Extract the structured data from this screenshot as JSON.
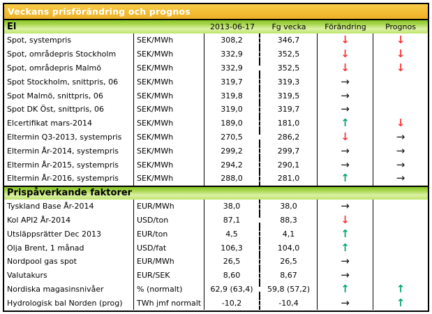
{
  "title": "Veckans prisförändring och prognos",
  "columns": {
    "date": "2013-06-17",
    "prev": "Fg vecka",
    "change": "Förändring",
    "forecast": "Prognos"
  },
  "colors": {
    "title_bar_bg": "#f2bd33",
    "section_bar_green": "#a9d84f",
    "up": "#00a76d",
    "down": "#ff3333",
    "right": "#111111"
  },
  "arrow_glyphs": {
    "up": "↑",
    "down": "↓",
    "right": "→",
    "none": ""
  },
  "sections": [
    {
      "title": "El",
      "rows": [
        {
          "label": "Spot, systempris",
          "unit": "SEK/MWh",
          "current": "308,2",
          "previous": "346,7",
          "change": "down",
          "forecast": "down"
        },
        {
          "label": "Spot, områdepris Stockholm",
          "unit": "SEK/MWh",
          "current": "332,9",
          "previous": "352,5",
          "change": "down",
          "forecast": "down"
        },
        {
          "label": "Spot, områdepris Malmö",
          "unit": "SEK/MWh",
          "current": "332,9",
          "previous": "352,5",
          "change": "down",
          "forecast": "down"
        },
        {
          "label": "Spot Stockholm, snittpris,  06",
          "unit": "SEK/MWh",
          "current": "319,7",
          "previous": "319,3",
          "change": "right",
          "forecast": "none"
        },
        {
          "label": "Spot Malmö, snittpris,  06",
          "unit": "SEK/MWh",
          "current": "319,8",
          "previous": "319,5",
          "change": "right",
          "forecast": "none"
        },
        {
          "label": "Spot DK Öst, snittpris,  06",
          "unit": "SEK/MWh",
          "current": "319,0",
          "previous": "319,7",
          "change": "right",
          "forecast": "none"
        },
        {
          "label": "Elcertifikat mars-2014",
          "unit": "SEK/MWh",
          "current": "189,0",
          "previous": "181,0",
          "change": "up",
          "forecast": "down"
        },
        {
          "label": "Eltermin Q3-2013, systempris",
          "unit": "SEK/MWh",
          "current": "270,5",
          "previous": "286,2",
          "change": "down",
          "forecast": "right"
        },
        {
          "label": "Eltermin År-2014, systempris",
          "unit": "SEK/MWh",
          "current": "299,2",
          "previous": "299,7",
          "change": "right",
          "forecast": "right"
        },
        {
          "label": "Eltermin År-2015, systempris",
          "unit": "SEK/MWh",
          "current": "294,2",
          "previous": "290,1",
          "change": "right",
          "forecast": "right"
        },
        {
          "label": "Eltermin År-2016, systempris",
          "unit": "SEK/MWh",
          "current": "288,0",
          "previous": "281,0",
          "change": "up",
          "forecast": "right"
        }
      ]
    },
    {
      "title": "Prispåverkande faktorer",
      "rows": [
        {
          "label": "Tyskland Base År-2014",
          "unit": "EUR/MWh",
          "current": "38,0",
          "previous": "38,0",
          "change": "right",
          "forecast": "none"
        },
        {
          "label": "Kol API2 År-2014",
          "unit": "USD/ton",
          "current": "87,1",
          "previous": "88,3",
          "change": "down",
          "forecast": "none"
        },
        {
          "label": "Utsläppsrätter Dec 2013",
          "unit": "EUR/ton",
          "current": "4,5",
          "previous": "4,1",
          "change": "up",
          "forecast": "none"
        },
        {
          "label": "Olja Brent, 1 månad",
          "unit": "USD/fat",
          "current": "106,3",
          "previous": "104,0",
          "change": "up",
          "forecast": "none"
        },
        {
          "label": "Nordpool gas spot",
          "unit": "EUR/MWh",
          "current": "26,5",
          "previous": "26,5",
          "change": "right",
          "forecast": "none"
        },
        {
          "label": "Valutakurs",
          "unit": "EUR/SEK",
          "current": "8,60",
          "previous": "8,67",
          "change": "right",
          "forecast": "none"
        },
        {
          "label": "Nordiska magasinsnivåer",
          "unit": "%  (normalt)",
          "current": "62,9 (63,4)",
          "previous": "59,8 (57,2)",
          "change": "up",
          "forecast": "up"
        },
        {
          "label": "Hydrologisk bal Norden (prog)",
          "unit": "TWh jmf normalt",
          "current": "-10,2",
          "previous": "-10,4",
          "change": "right",
          "forecast": "up"
        }
      ]
    }
  ]
}
